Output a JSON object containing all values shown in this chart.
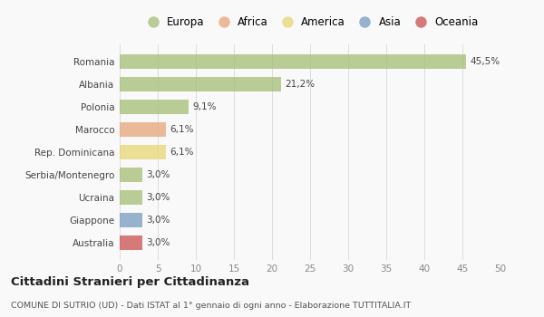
{
  "countries": [
    "Romania",
    "Albania",
    "Polonia",
    "Marocco",
    "Rep. Dominicana",
    "Serbia/Montenegro",
    "Ucraina",
    "Giappone",
    "Australia"
  ],
  "values": [
    45.5,
    21.2,
    9.1,
    6.1,
    6.1,
    3.0,
    3.0,
    3.0,
    3.0
  ],
  "labels": [
    "45,5%",
    "21,2%",
    "9,1%",
    "6,1%",
    "6,1%",
    "3,0%",
    "3,0%",
    "3,0%",
    "3,0%"
  ],
  "colors": [
    "#a8c07a",
    "#a8c07a",
    "#a8c07a",
    "#e8a87c",
    "#e8d87a",
    "#a8c07a",
    "#a8c07a",
    "#7a9ec0",
    "#cc5555"
  ],
  "legend_labels": [
    "Europa",
    "Africa",
    "America",
    "Asia",
    "Oceania"
  ],
  "legend_colors": [
    "#a8c07a",
    "#e8a87c",
    "#e8d87a",
    "#7a9ec0",
    "#cc5555"
  ],
  "title": "Cittadini Stranieri per Cittadinanza",
  "subtitle": "COMUNE DI SUTRIO (UD) - Dati ISTAT al 1° gennaio di ogni anno - Elaborazione TUTTITALIA.IT",
  "xlim": [
    0,
    50
  ],
  "xticks": [
    0,
    5,
    10,
    15,
    20,
    25,
    30,
    35,
    40,
    45,
    50
  ],
  "bg_color": "#f9f9f9",
  "bar_alpha": 0.78
}
